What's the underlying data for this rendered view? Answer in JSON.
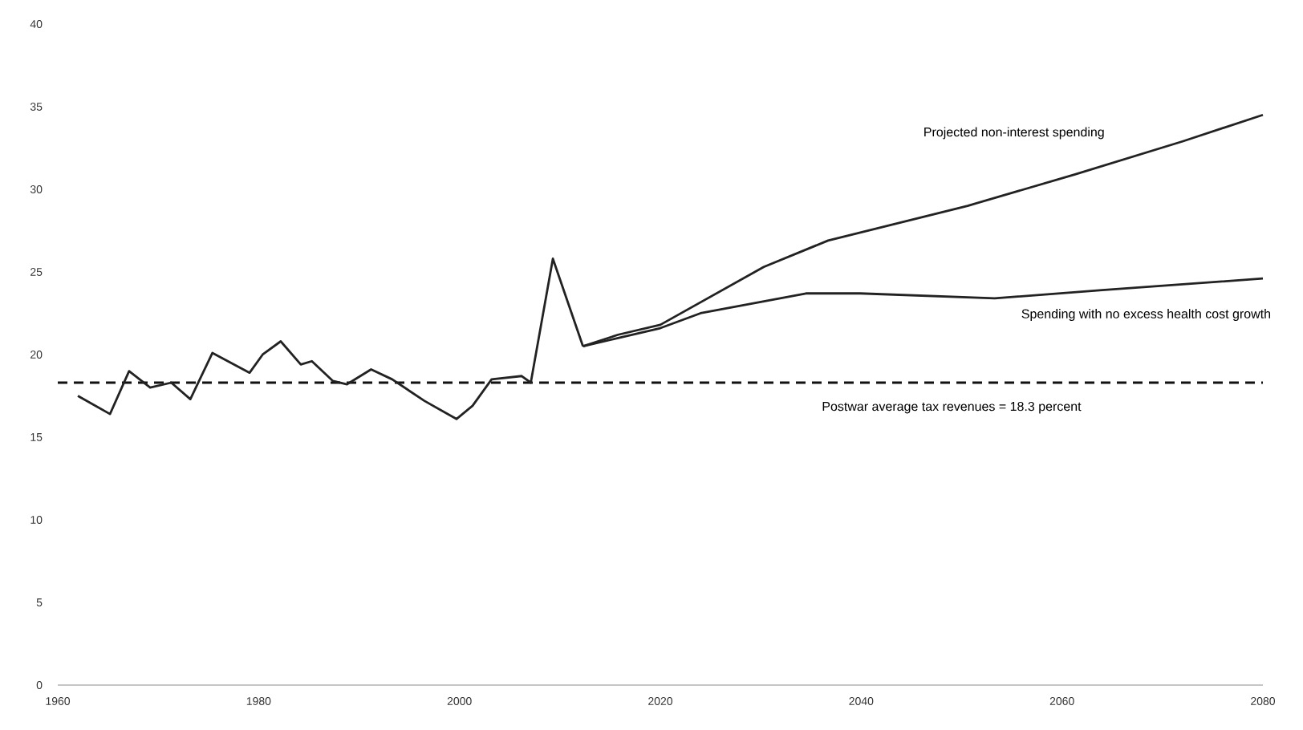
{
  "chart_data": {
    "type": "line",
    "xlim": [
      1960,
      2080
    ],
    "xticks": [
      1960,
      1980,
      2000,
      2020,
      2040,
      2060,
      2080
    ],
    "ylim": [
      0,
      40
    ],
    "yticks": [
      0,
      5,
      10,
      15,
      20,
      25,
      30,
      35,
      40
    ],
    "series": [
      {
        "color": "#222222",
        "x": [
          1962,
          1965.2,
          1967.1,
          1969.2,
          1971.3,
          1973.2,
          1975.4,
          1979.1,
          1980.4,
          1982.2,
          1984.2,
          1985.3,
          1987.4,
          1988.8,
          1991.2,
          1993.3,
          1996.5,
          1999.7,
          2001.3,
          2003.2,
          2006.2,
          2007.1,
          2009.3,
          2012.3
        ],
        "values": [
          17.5,
          16.4,
          19.0,
          18.0,
          18.3,
          17.3,
          20.1,
          18.9,
          20.0,
          20.8,
          19.4,
          19.6,
          18.4,
          18.2,
          19.1,
          18.5,
          17.2,
          16.1,
          16.9,
          18.5,
          18.7,
          18.3,
          25.8,
          20.5
        ]
      },
      {
        "name": "Projected non-interest spending",
        "color": "#222222",
        "x": [
          2012.3,
          2015.8,
          2020,
          2030.3,
          2036.7,
          2050.6,
          2061.3,
          2072,
          2080
        ],
        "values": [
          20.5,
          21.2,
          21.8,
          25.3,
          26.9,
          29.0,
          30.9,
          32.9,
          34.5
        ]
      },
      {
        "name": "Spending with no excess health cost growth",
        "color": "#222222",
        "x": [
          2012.3,
          2015.8,
          2020,
          2024,
          2034.5,
          2039.9,
          2053.3,
          2064,
          2080
        ],
        "values": [
          20.5,
          21.0,
          21.6,
          22.5,
          23.7,
          23.7,
          23.4,
          23.9,
          24.6
        ]
      }
    ],
    "ref_lines": [
      {
        "axis": "y",
        "value": 18.3,
        "label": "Postwar average tax revenues = 18.3 percent",
        "line_style": "dashed",
        "color": "#111111"
      }
    ]
  }
}
